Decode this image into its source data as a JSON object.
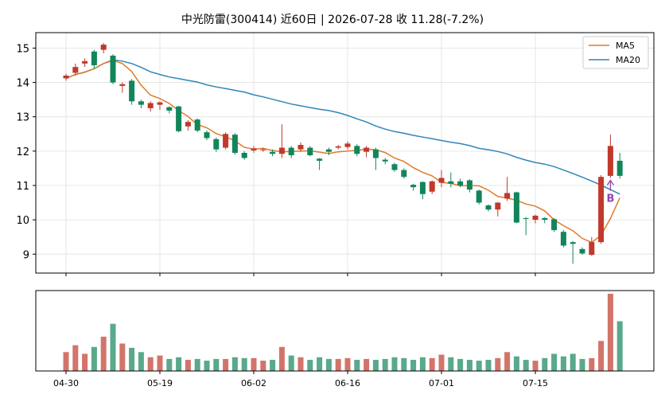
{
  "title": "中光防雷(300414) 近60日  |  2026-07-28 收 11.28(-7.2%)",
  "colors": {
    "up": "#c0392b",
    "down": "#12855a",
    "ma5": "#e07b2a",
    "ma20": "#2f86b8",
    "signal": "#8e44ad"
  },
  "chart_data": {
    "type": "candlestick",
    "title": "中光防雷(300414) 近60日  |  2026-07-28 收 11.28(-7.2%)",
    "ylim": [
      8.45,
      15.45
    ],
    "yticks": [
      9,
      10,
      11,
      12,
      13,
      14,
      15
    ],
    "xticks": [
      {
        "index": 0,
        "label": "04-30"
      },
      {
        "index": 10,
        "label": "05-19"
      },
      {
        "index": 20,
        "label": "06-02"
      },
      {
        "index": 30,
        "label": "06-16"
      },
      {
        "index": 40,
        "label": "07-01"
      },
      {
        "index": 50,
        "label": "07-15"
      }
    ],
    "legend": {
      "position": "top-right",
      "entries": [
        "MA5",
        "MA20"
      ]
    },
    "grid": true,
    "candles": [
      [
        14.12,
        14.2,
        14.05,
        14.25
      ],
      [
        14.28,
        14.45,
        14.2,
        14.55
      ],
      [
        14.55,
        14.62,
        14.45,
        14.7
      ],
      [
        14.9,
        14.5,
        14.4,
        14.95
      ],
      [
        14.95,
        15.1,
        14.85,
        15.15
      ],
      [
        14.78,
        14.0,
        13.95,
        14.82
      ],
      [
        13.9,
        13.95,
        13.7,
        14.0
      ],
      [
        14.05,
        13.45,
        13.35,
        14.1
      ],
      [
        13.45,
        13.35,
        13.25,
        13.5
      ],
      [
        13.25,
        13.4,
        13.15,
        13.45
      ],
      [
        13.35,
        13.42,
        13.2,
        13.45
      ],
      [
        13.28,
        13.18,
        13.1,
        13.3
      ],
      [
        13.3,
        12.58,
        12.55,
        13.32
      ],
      [
        12.72,
        12.85,
        12.6,
        12.9
      ],
      [
        12.92,
        12.6,
        12.55,
        12.95
      ],
      [
        12.55,
        12.38,
        12.32,
        12.6
      ],
      [
        12.35,
        12.05,
        11.98,
        12.4
      ],
      [
        12.1,
        12.5,
        12.05,
        12.55
      ],
      [
        12.48,
        11.95,
        11.9,
        12.52
      ],
      [
        11.95,
        11.8,
        11.75,
        12.0
      ],
      [
        12.02,
        12.08,
        11.95,
        12.15
      ],
      [
        12.05,
        12.05,
        11.98,
        12.1
      ],
      [
        11.98,
        11.92,
        11.85,
        12.05
      ],
      [
        11.92,
        12.1,
        11.8,
        12.78
      ],
      [
        12.1,
        11.88,
        11.8,
        12.15
      ],
      [
        12.05,
        12.18,
        11.98,
        12.25
      ],
      [
        12.1,
        11.88,
        11.85,
        12.15
      ],
      [
        11.78,
        11.72,
        11.45,
        11.8
      ],
      [
        12.05,
        11.98,
        11.88,
        12.1
      ],
      [
        12.1,
        12.14,
        12.05,
        12.18
      ],
      [
        12.12,
        12.22,
        12.05,
        12.28
      ],
      [
        12.15,
        11.92,
        11.85,
        12.2
      ],
      [
        11.98,
        12.1,
        11.82,
        12.15
      ],
      [
        12.05,
        11.8,
        11.45,
        12.1
      ],
      [
        11.75,
        11.7,
        11.62,
        11.8
      ],
      [
        11.62,
        11.45,
        11.4,
        11.66
      ],
      [
        11.45,
        11.25,
        11.2,
        11.5
      ],
      [
        11.02,
        10.95,
        10.85,
        11.05
      ],
      [
        11.1,
        10.75,
        10.6,
        11.12
      ],
      [
        10.82,
        11.12,
        10.75,
        11.15
      ],
      [
        11.08,
        11.22,
        10.95,
        11.45
      ],
      [
        11.12,
        11.05,
        10.95,
        11.38
      ],
      [
        11.12,
        11.0,
        10.95,
        11.2
      ],
      [
        11.15,
        10.88,
        10.8,
        11.18
      ],
      [
        10.85,
        10.5,
        10.45,
        10.88
      ],
      [
        10.42,
        10.3,
        10.25,
        10.45
      ],
      [
        10.3,
        10.5,
        10.1,
        10.52
      ],
      [
        10.62,
        10.78,
        10.55,
        11.25
      ],
      [
        10.8,
        9.92,
        9.9,
        10.82
      ],
      [
        10.05,
        10.04,
        9.55,
        10.08
      ],
      [
        10.0,
        10.12,
        9.9,
        10.15
      ],
      [
        10.05,
        10.0,
        9.9,
        10.08
      ],
      [
        10.02,
        9.7,
        9.65,
        10.05
      ],
      [
        9.65,
        9.25,
        9.2,
        9.7
      ],
      [
        9.35,
        9.3,
        8.72,
        9.38
      ],
      [
        9.15,
        9.02,
        8.98,
        9.2
      ],
      [
        8.98,
        9.35,
        8.95,
        9.5
      ],
      [
        9.35,
        11.25,
        9.3,
        11.3
      ],
      [
        11.28,
        12.15,
        11.22,
        12.48
      ],
      [
        11.72,
        11.28,
        11.2,
        11.95
      ]
    ],
    "ma5": [
      14.12,
      14.23,
      14.3,
      14.4,
      14.55,
      14.64,
      14.55,
      14.32,
      13.92,
      13.63,
      13.53,
      13.39,
      13.18,
      13.01,
      12.77,
      12.68,
      12.51,
      12.42,
      12.3,
      12.11,
      12.06,
      12.08,
      12.02,
      11.98,
      11.99,
      12.0,
      12.01,
      11.97,
      11.93,
      11.98,
      12.0,
      12.02,
      12.06,
      12.04,
      11.96,
      11.8,
      11.7,
      11.52,
      11.38,
      11.28,
      11.09,
      11.06,
      10.99,
      11.0,
      10.99,
      10.86,
      10.68,
      10.63,
      10.57,
      10.46,
      10.4,
      10.26,
      10.0,
      9.83,
      9.68,
      9.46,
      9.34,
      9.55,
      10.04,
      10.64
    ],
    "ma20": [
      14.12,
      14.23,
      14.3,
      14.4,
      14.55,
      14.66,
      14.62,
      14.55,
      14.44,
      14.31,
      14.23,
      14.16,
      14.11,
      14.06,
      14.01,
      13.93,
      13.87,
      13.82,
      13.77,
      13.72,
      13.64,
      13.58,
      13.51,
      13.44,
      13.37,
      13.32,
      13.27,
      13.22,
      13.18,
      13.12,
      13.04,
      12.94,
      12.85,
      12.73,
      12.64,
      12.57,
      12.52,
      12.46,
      12.41,
      12.36,
      12.31,
      12.26,
      12.22,
      12.16,
      12.08,
      12.04,
      11.99,
      11.92,
      11.82,
      11.74,
      11.67,
      11.62,
      11.55,
      11.45,
      11.35,
      11.24,
      11.13,
      11.01,
      10.88,
      10.75
    ],
    "volume": [
      22,
      30,
      20,
      28,
      40,
      55,
      32,
      27,
      22,
      16,
      18,
      14,
      16,
      13,
      14,
      12,
      14,
      14,
      16,
      15,
      15,
      12,
      13,
      28,
      18,
      16,
      13,
      16,
      14,
      14,
      15,
      13,
      14,
      13,
      14,
      16,
      15,
      13,
      16,
      15,
      19,
      16,
      14,
      13,
      12,
      13,
      15,
      22,
      17,
      13,
      12,
      15,
      20,
      17,
      20,
      14,
      15,
      35,
      90,
      58
    ],
    "signal": {
      "index": 58,
      "label": "B"
    }
  }
}
